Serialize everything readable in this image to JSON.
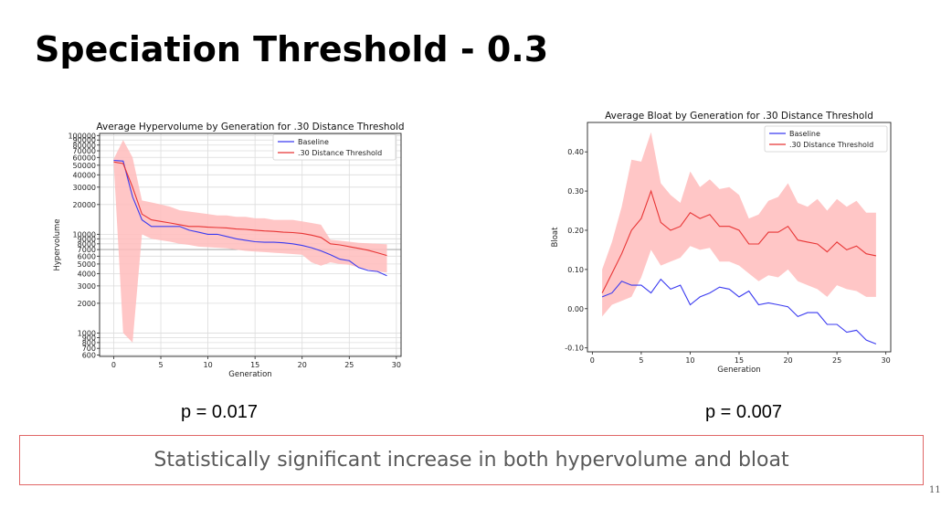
{
  "slide": {
    "title": "Speciation Threshold - 0.3",
    "conclusion": "Statistically significant increase in both hypervolume and bloat",
    "page_number": "11"
  },
  "colors": {
    "baseline": "#3b3bf0",
    "threshold": "#e83535",
    "band": "#ffbcbc",
    "frame": "#e06666"
  },
  "pvalues": {
    "hypervolume": "p = 0.017",
    "bloat": "p = 0.007"
  },
  "chart_data": [
    {
      "type": "line",
      "title": "Average Hypervolume by Generation for .30 Distance Threshold",
      "xlabel": "Generation",
      "ylabel": "Hypervolume",
      "yscale": "log",
      "xlim": [
        -1.5,
        30.5
      ],
      "ylim": [
        580,
        105000
      ],
      "grid": true,
      "legend_position": "top-right",
      "x_ticks": [
        0,
        5,
        10,
        15,
        20,
        25,
        30
      ],
      "y_ticks": [
        {
          "v": 600,
          "label": "600"
        },
        {
          "v": 700,
          "label": "700"
        },
        {
          "v": 800,
          "label": "800"
        },
        {
          "v": 900,
          "label": "900"
        },
        {
          "v": 1000,
          "label": "1000"
        },
        {
          "v": 2000,
          "label": "2000"
        },
        {
          "v": 3000,
          "label": "3000"
        },
        {
          "v": 4000,
          "label": "4000"
        },
        {
          "v": 5000,
          "label": "5000"
        },
        {
          "v": 6000,
          "label": "6000"
        },
        {
          "v": 7000,
          "label": "7000"
        },
        {
          "v": 8000,
          "label": "8000"
        },
        {
          "v": 9000,
          "label": "9000"
        },
        {
          "v": 10000,
          "label": "10000"
        },
        {
          "v": 20000,
          "label": "20000"
        },
        {
          "v": 30000,
          "label": "30000"
        },
        {
          "v": 40000,
          "label": "40000"
        },
        {
          "v": 50000,
          "label": "50000"
        },
        {
          "v": 60000,
          "label": "60000"
        },
        {
          "v": 70000,
          "label": "70000"
        },
        {
          "v": 80000,
          "label": "80000"
        },
        {
          "v": 90000,
          "label": "90000"
        },
        {
          "v": 100000,
          "label": "100000"
        }
      ],
      "hline": 7000,
      "x": [
        0,
        1,
        2,
        3,
        4,
        5,
        6,
        7,
        8,
        9,
        10,
        11,
        12,
        13,
        14,
        15,
        16,
        17,
        18,
        19,
        20,
        21,
        22,
        23,
        24,
        25,
        26,
        27,
        28,
        29
      ],
      "series": [
        {
          "name": "Baseline",
          "values": [
            56000,
            55000,
            24000,
            14000,
            12000,
            12000,
            12000,
            12000,
            11000,
            10500,
            10000,
            10000,
            9500,
            9000,
            8700,
            8400,
            8300,
            8300,
            8200,
            8000,
            7700,
            7300,
            6800,
            6200,
            5600,
            5400,
            4600,
            4300,
            4200,
            3800
          ]
        },
        {
          "name": ".30 Distance Threshold",
          "values": [
            54000,
            52000,
            30000,
            16000,
            14000,
            13500,
            13000,
            12500,
            12000,
            12000,
            11800,
            11700,
            11600,
            11300,
            11200,
            11000,
            10800,
            10700,
            10500,
            10400,
            10200,
            9800,
            9300,
            8000,
            7800,
            7500,
            7200,
            6900,
            6500,
            6100
          ],
          "band_lower": [
            52000,
            1000,
            800,
            10000,
            9000,
            8700,
            8400,
            8000,
            7800,
            7500,
            7400,
            7300,
            7200,
            7000,
            6800,
            6700,
            6600,
            6500,
            6400,
            6300,
            6200,
            5200,
            4800,
            5200,
            5000,
            4900,
            4600,
            4400,
            4200,
            4100
          ],
          "band_upper": [
            58000,
            90000,
            60000,
            22000,
            21000,
            20000,
            19000,
            17500,
            17000,
            16500,
            16000,
            15500,
            15500,
            15000,
            15000,
            14500,
            14500,
            14000,
            14000,
            14000,
            13500,
            13000,
            12500,
            8800,
            8600,
            8400,
            8200,
            8100,
            8000,
            7900
          ]
        }
      ]
    },
    {
      "type": "line",
      "title": "Average Bloat by Generation for .30 Distance Threshold",
      "xlabel": "Generation",
      "ylabel": "Bloat",
      "xlim": [
        -0.5,
        30.5
      ],
      "ylim": [
        -0.11,
        0.475
      ],
      "grid": false,
      "legend_position": "top-right",
      "x_ticks": [
        0,
        5,
        10,
        15,
        20,
        25,
        30
      ],
      "y_ticks": [
        {
          "v": -0.1,
          "label": "-0.10"
        },
        {
          "v": 0.0,
          "label": "0.00"
        },
        {
          "v": 0.1,
          "label": "0.10"
        },
        {
          "v": 0.2,
          "label": "0.20"
        },
        {
          "v": 0.3,
          "label": "0.30"
        },
        {
          "v": 0.4,
          "label": "0.40"
        }
      ],
      "x": [
        1,
        2,
        3,
        4,
        5,
        6,
        7,
        8,
        9,
        10,
        11,
        12,
        13,
        14,
        15,
        16,
        17,
        18,
        19,
        20,
        21,
        22,
        23,
        24,
        25,
        26,
        27,
        28,
        29
      ],
      "series": [
        {
          "name": "Baseline",
          "values": [
            0.03,
            0.04,
            0.07,
            0.06,
            0.06,
            0.04,
            0.075,
            0.05,
            0.06,
            0.01,
            0.03,
            0.04,
            0.055,
            0.05,
            0.03,
            0.045,
            0.01,
            0.015,
            0.01,
            0.005,
            -0.02,
            -0.01,
            -0.01,
            -0.04,
            -0.04,
            -0.06,
            -0.055,
            -0.08,
            -0.09
          ]
        },
        {
          "name": ".30 Distance Threshold",
          "values": [
            0.04,
            0.09,
            0.14,
            0.2,
            0.23,
            0.3,
            0.22,
            0.2,
            0.21,
            0.245,
            0.23,
            0.24,
            0.21,
            0.21,
            0.2,
            0.165,
            0.165,
            0.195,
            0.195,
            0.21,
            0.175,
            0.17,
            0.165,
            0.145,
            0.17,
            0.15,
            0.16,
            0.14,
            0.135
          ],
          "band_lower": [
            -0.02,
            0.01,
            0.02,
            0.03,
            0.08,
            0.15,
            0.11,
            0.12,
            0.13,
            0.16,
            0.15,
            0.155,
            0.12,
            0.12,
            0.11,
            0.09,
            0.07,
            0.085,
            0.08,
            0.1,
            0.07,
            0.06,
            0.05,
            0.03,
            0.06,
            0.05,
            0.045,
            0.03,
            0.03
          ],
          "band_upper": [
            0.1,
            0.17,
            0.26,
            0.38,
            0.375,
            0.45,
            0.32,
            0.29,
            0.27,
            0.35,
            0.31,
            0.33,
            0.305,
            0.31,
            0.29,
            0.23,
            0.24,
            0.275,
            0.285,
            0.32,
            0.27,
            0.26,
            0.28,
            0.25,
            0.28,
            0.26,
            0.275,
            0.245,
            0.245
          ]
        }
      ]
    }
  ]
}
